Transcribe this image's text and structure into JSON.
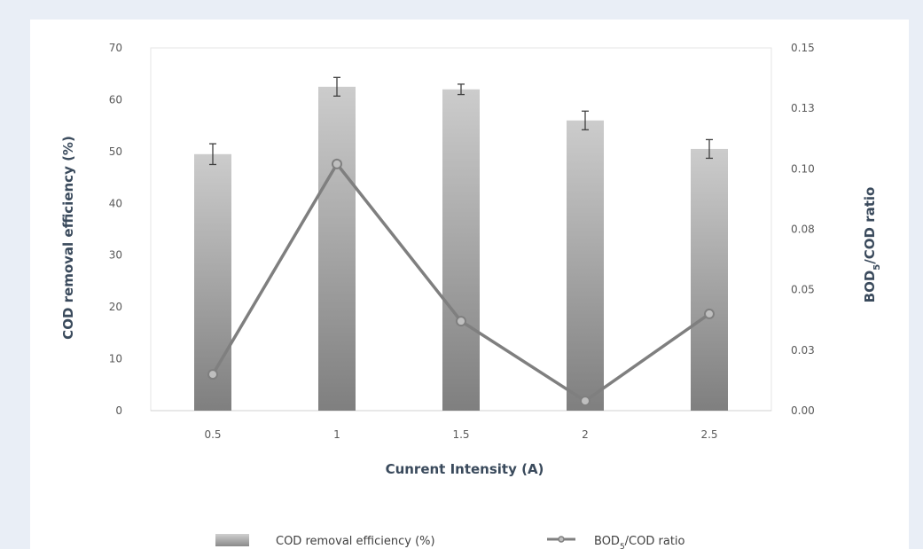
{
  "chart_data": {
    "type": "bar",
    "categories": [
      "0.5",
      "1",
      "1.5",
      "2",
      "2.5"
    ],
    "series": [
      {
        "name": "COD removal efficiency (%)",
        "type": "bar",
        "axis": "left",
        "values": [
          49.5,
          62.5,
          62.0,
          56.0,
          50.5
        ],
        "error": [
          2.0,
          1.8,
          1.0,
          1.8,
          1.8
        ]
      },
      {
        "name_main": "BOD",
        "name_sub": "5",
        "name_tail": "/COD ratio",
        "type": "line",
        "axis": "right",
        "values": [
          0.015,
          0.102,
          0.037,
          0.004,
          0.04
        ]
      }
    ],
    "xlabel": "Cunrent Intensity (A)",
    "ylabel": "COD removal efficiency  (%)",
    "y2label": {
      "main": "BOD",
      "sub": "5",
      "tail": "/COD ratio"
    },
    "ylim": [
      0,
      70
    ],
    "y2lim": [
      0,
      0.15
    ],
    "yticks": [
      "0",
      "10",
      "20",
      "30",
      "40",
      "50",
      "60",
      "70"
    ],
    "y2ticks": [
      "0.00",
      "0.03",
      "0.05",
      "0.08",
      "0.10",
      "0.13",
      "0.15"
    ],
    "legend_position": "bottom",
    "grid": false,
    "colors": {
      "bar_light": "#cccccc",
      "bar_dark": "#7f7f7f",
      "line": "#7f7f7f",
      "marker_fill": "#bfbfbf",
      "error_bar": "#404040"
    }
  }
}
